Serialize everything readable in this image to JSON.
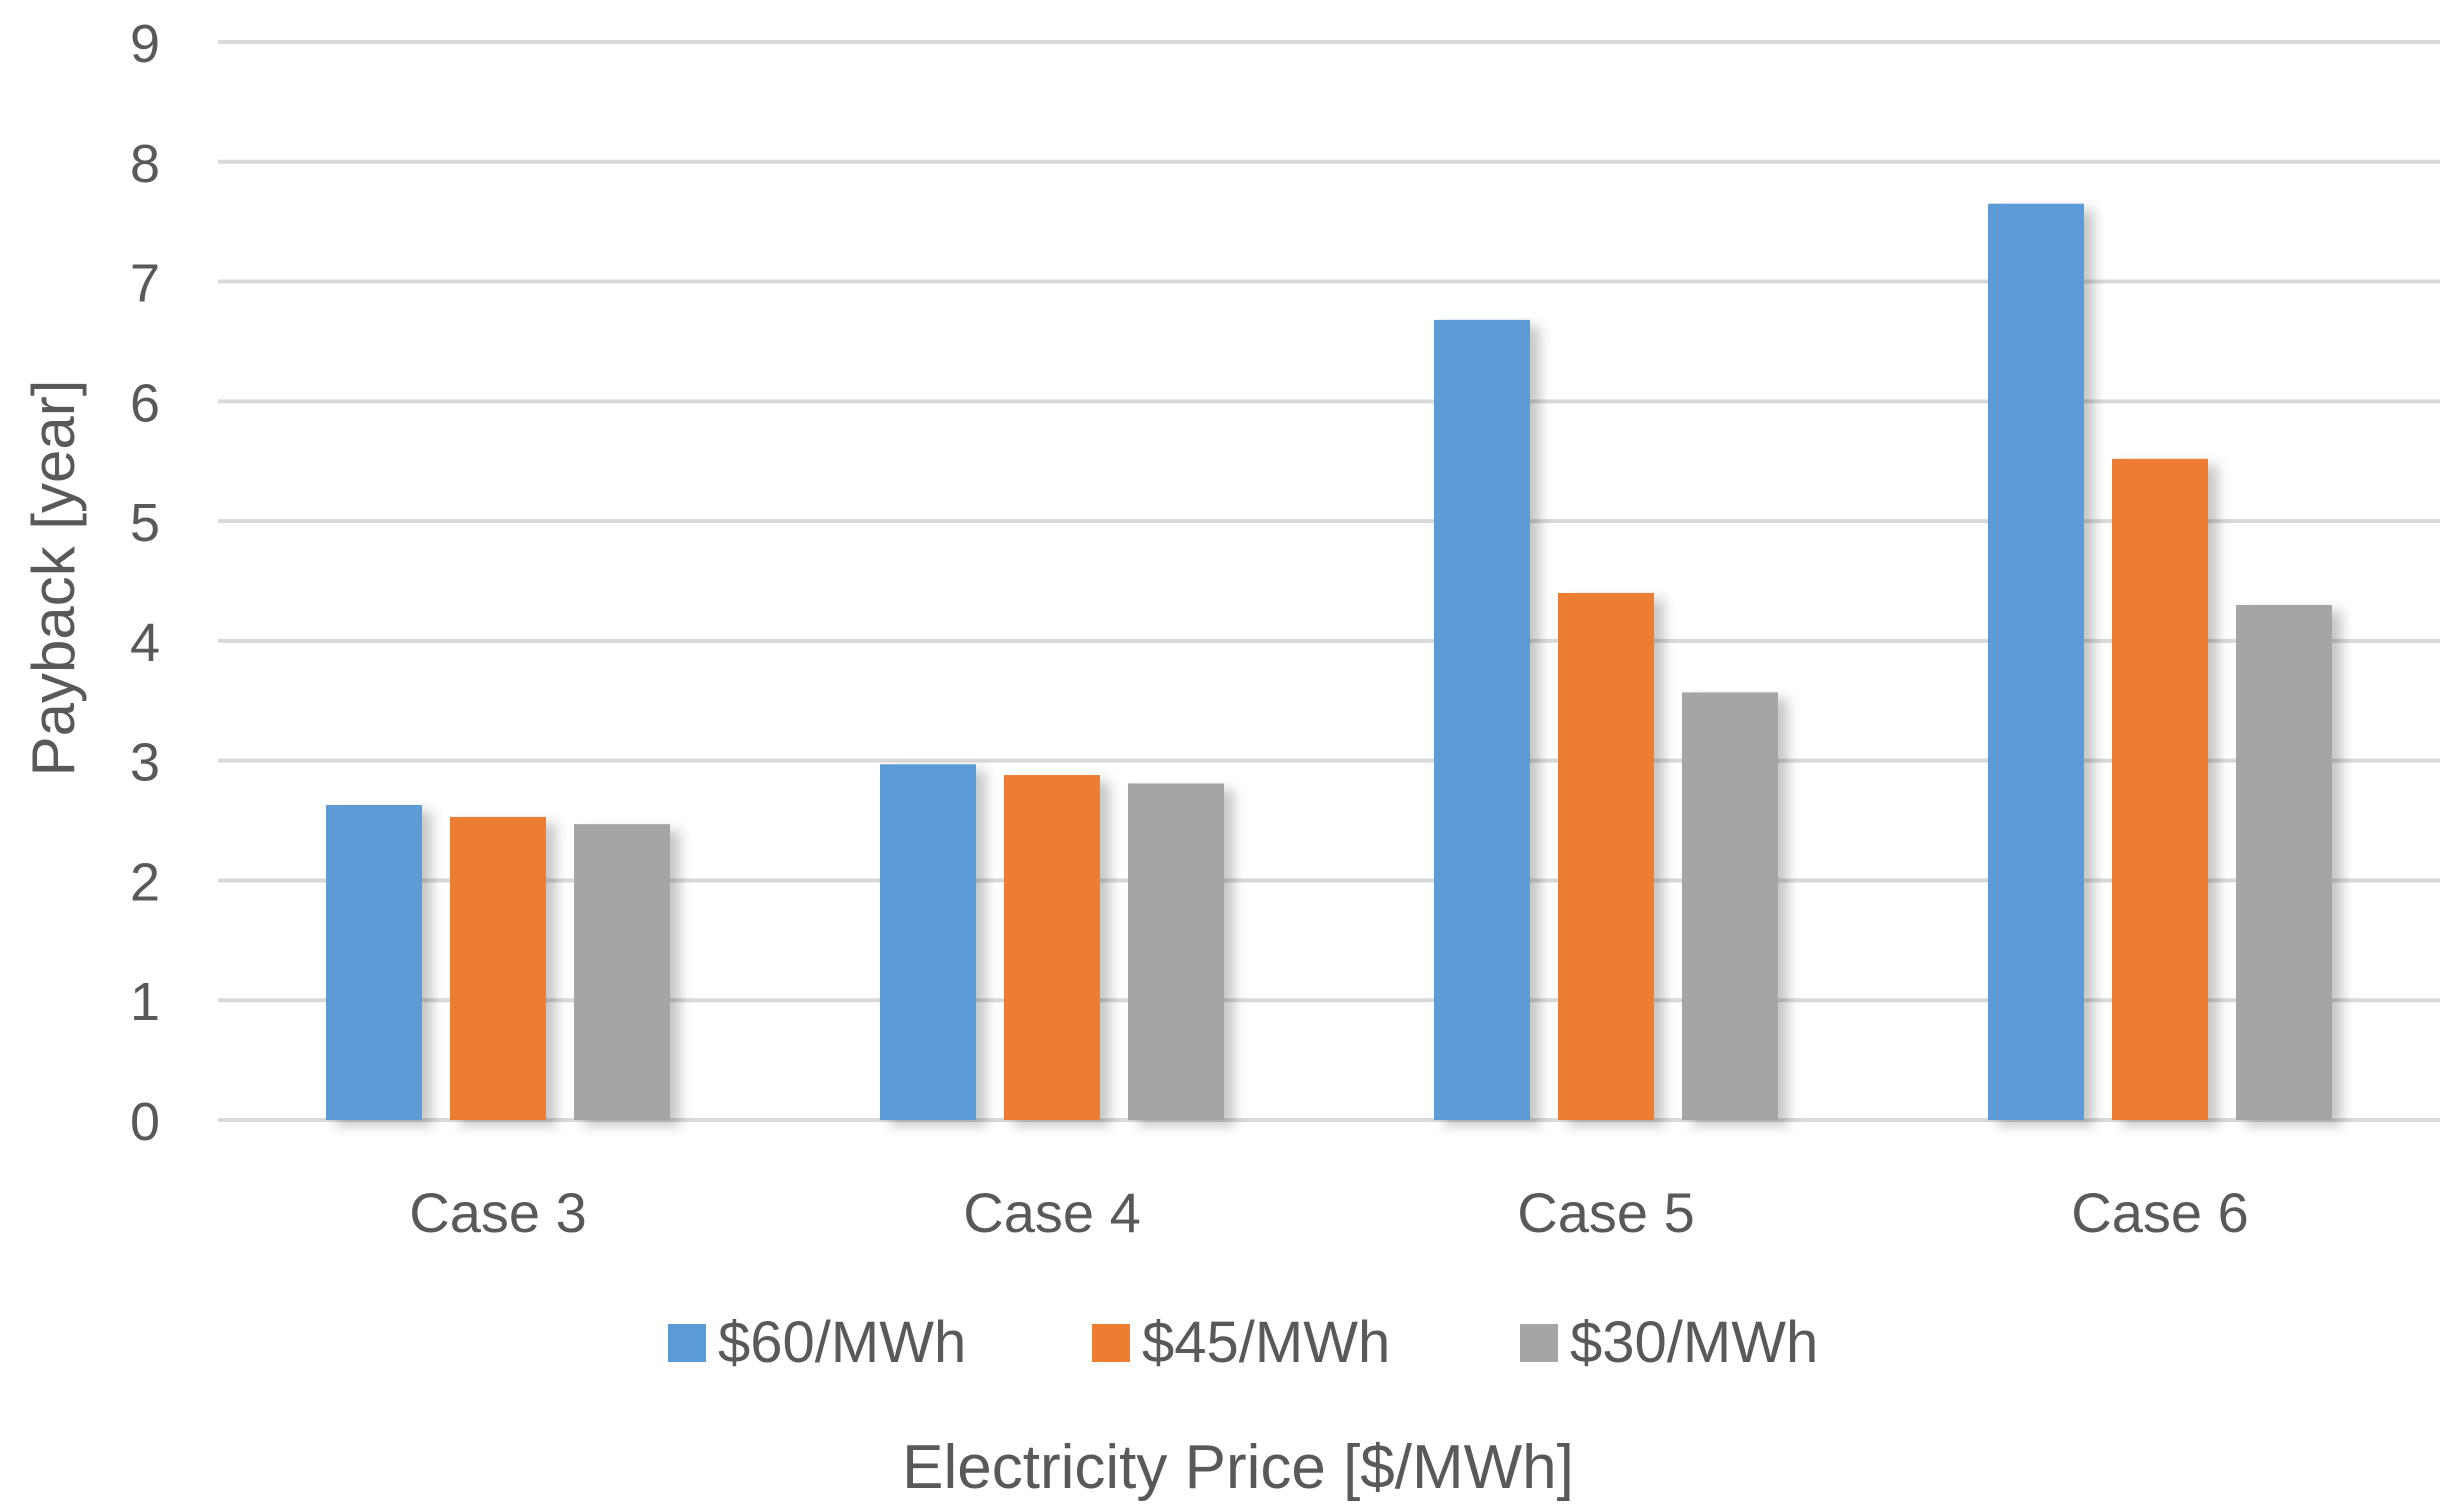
{
  "chart_data": {
    "type": "bar",
    "title": "",
    "xlabel": "Electricity Price [$/MWh]",
    "ylabel": "Payback [year]",
    "ylim": [
      0,
      9
    ],
    "yticks": [
      0,
      1,
      2,
      3,
      4,
      5,
      6,
      7,
      8,
      9
    ],
    "grid": true,
    "legend_position": "bottom",
    "categories": [
      "Case 3",
      "Case 4",
      "Case 5",
      "Case 6"
    ],
    "series": [
      {
        "name": "$60/MWh",
        "color": "#5B9BD5",
        "values": [
          2.63,
          2.97,
          6.68,
          7.65
        ]
      },
      {
        "name": "$45/MWh",
        "color": "#ED7D31",
        "values": [
          2.53,
          2.88,
          4.4,
          5.52
        ]
      },
      {
        "name": "$30/MWh",
        "color": "#A5A5A5",
        "values": [
          2.47,
          2.81,
          3.57,
          4.3
        ]
      }
    ]
  }
}
